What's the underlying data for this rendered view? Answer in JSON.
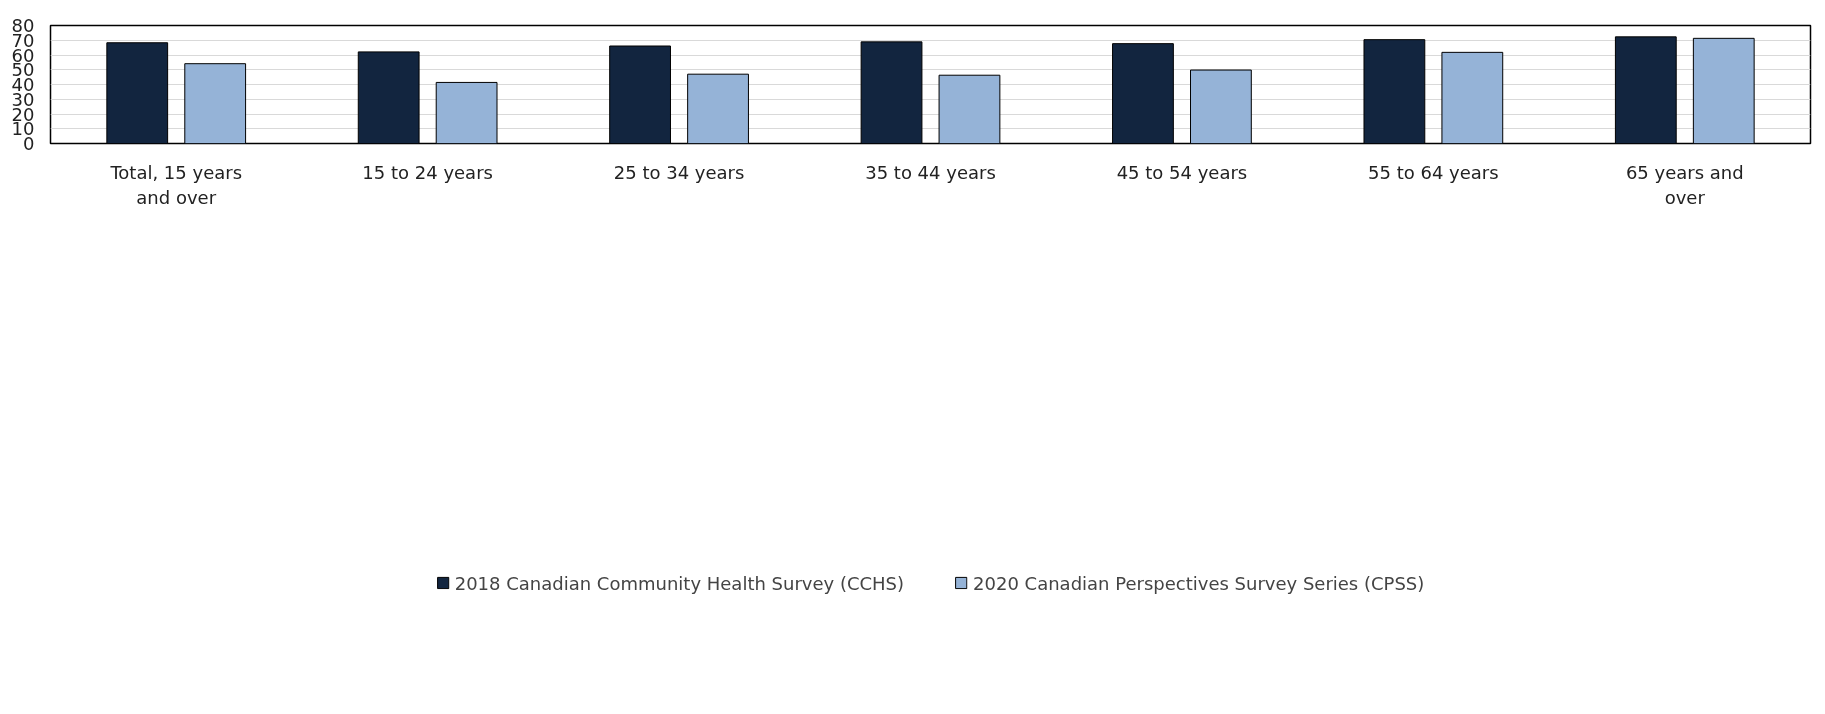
{
  "chart_data": {
    "type": "bar",
    "categories": [
      "Total, 15 years and over",
      "15 to 24 years",
      "25 to 34 years",
      "35 to 44 years",
      "45 to 54 years",
      "55 to 64 years",
      "65 years and over"
    ],
    "series": [
      {
        "name": "2018 Canadian Community Health Survey (CCHS)",
        "color": "#12253f",
        "values": [
          68.3,
          62.1,
          66.1,
          68.9,
          67.7,
          70.4,
          72.3
        ]
      },
      {
        "name": "2020 Canadian Perspectives Survey Series (CPSS)",
        "color": "#95b3d7",
        "values": [
          54.1,
          41.4,
          47.0,
          46.3,
          49.8,
          61.8,
          71.3
        ]
      }
    ],
    "ylim": [
      0,
      80
    ],
    "yticks": [
      0,
      10,
      20,
      30,
      40,
      50,
      60,
      70,
      80
    ],
    "grid": "y",
    "legend": "bottom"
  }
}
